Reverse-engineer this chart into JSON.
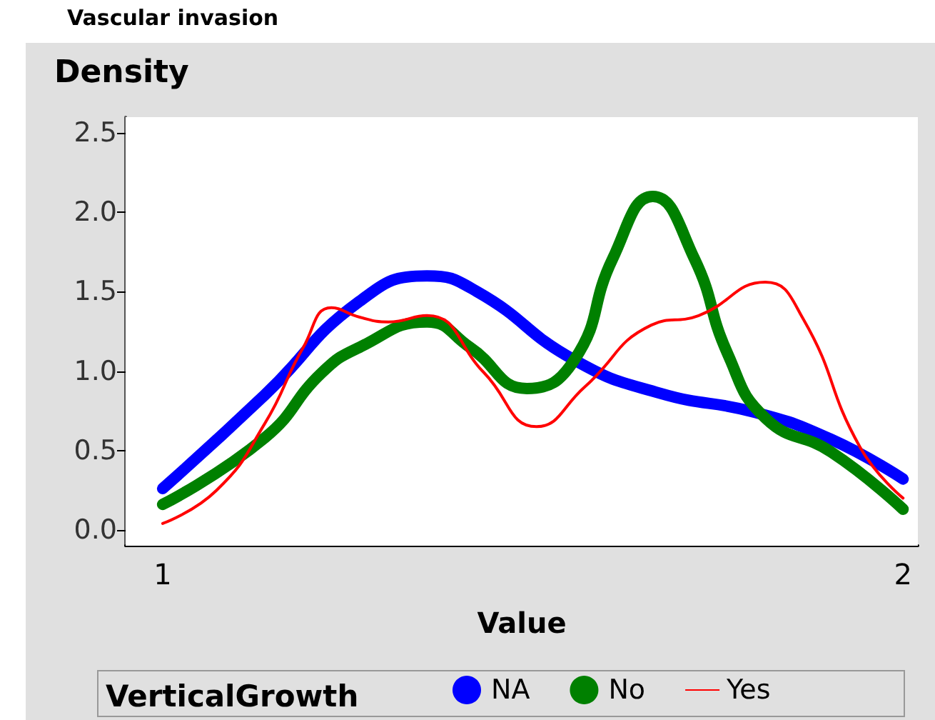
{
  "chart_data": {
    "type": "line",
    "title": "Vascular invasion",
    "xlabel": "Value",
    "ylabel": "Density",
    "legend_title": "VerticalGrowth",
    "xlim": [
      0.95,
      2.02
    ],
    "xticks": [
      1,
      2
    ],
    "ylim": [
      -0.1,
      2.6
    ],
    "yticks": [
      {
        "value": 0,
        "label": "0.0"
      },
      {
        "value": 0.5,
        "label": "0.5"
      },
      {
        "value": 1,
        "label": "1.0"
      },
      {
        "value": 1.5,
        "label": "1.5"
      },
      {
        "value": 2,
        "label": "2.0"
      },
      {
        "value": 2.5,
        "label": "2.5"
      }
    ],
    "legend": "bottom",
    "marker": "none",
    "line_style": "solid",
    "series": [
      {
        "name": "NA",
        "color": "#0000ff",
        "x": [
          1.0,
          1.138,
          1.266,
          1.357,
          1.425,
          1.556,
          1.672,
          1.8,
          1.903,
          2.0
        ],
        "values": [
          0.26,
          0.85,
          1.44,
          1.6,
          1.5,
          1.07,
          0.86,
          0.74,
          0.57,
          0.32
        ]
      },
      {
        "name": "No",
        "color": "#008000",
        "x": [
          1.0,
          1.138,
          1.215,
          1.266,
          1.357,
          1.415,
          1.492,
          1.556,
          1.608,
          1.662,
          1.718,
          1.763,
          1.815,
          1.903,
          2.0
        ],
        "values": [
          0.16,
          0.58,
          0.99,
          1.15,
          1.31,
          1.15,
          0.89,
          1.07,
          1.71,
          2.1,
          1.71,
          1.11,
          0.7,
          0.49,
          0.13
        ]
      },
      {
        "name": "Yes",
        "color": "#ff0000",
        "x": [
          1.0,
          1.073,
          1.138,
          1.19,
          1.228,
          1.266,
          1.305,
          1.357,
          1.434,
          1.505,
          1.57,
          1.66,
          1.724,
          1.814,
          1.865,
          1.942,
          2.0
        ],
        "values": [
          0.04,
          0.25,
          0.67,
          1.15,
          1.4,
          1.34,
          1.31,
          1.35,
          0.99,
          0.65,
          0.9,
          1.29,
          1.35,
          1.56,
          1.33,
          0.52,
          0.2
        ]
      }
    ]
  }
}
